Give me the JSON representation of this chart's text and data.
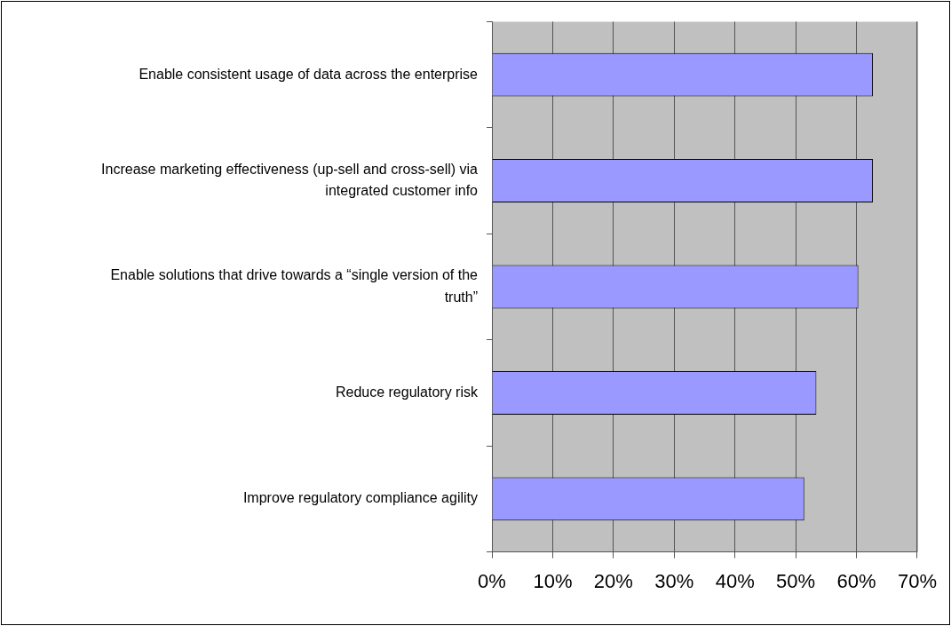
{
  "chart_data": {
    "type": "bar",
    "orientation": "horizontal",
    "categories": [
      "Enable consistent usage of data across the enterprise",
      "Increase marketing effectiveness (up-sell and cross-sell) via integrated customer info",
      "Enable solutions that drive towards a “single version of the truth”",
      "Reduce regulatory risk",
      "Improve regulatory compliance agility"
    ],
    "values": [
      62.7,
      62.7,
      60.3,
      53.4,
      51.4
    ],
    "color": "#9999ff",
    "xlim": [
      0,
      70
    ],
    "xticks": [
      {
        "value": 0,
        "label": "0%"
      },
      {
        "value": 10,
        "label": "10%"
      },
      {
        "value": 20,
        "label": "20%"
      },
      {
        "value": 30,
        "label": "30%"
      },
      {
        "value": 40,
        "label": "40%"
      },
      {
        "value": 50,
        "label": "50%"
      },
      {
        "value": 60,
        "label": "60%"
      },
      {
        "value": 70,
        "label": "70%"
      }
    ],
    "grid": "x",
    "legend": false
  }
}
